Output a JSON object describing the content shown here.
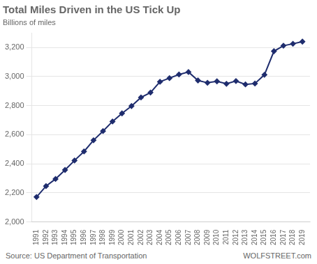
{
  "chart_data": {
    "type": "line",
    "title": "Total Miles Driven in the US Tick Up",
    "subtitle": "Billions of miles",
    "annotations": [
      "Source: US Department of Transportation",
      "WOLFSTREET.com"
    ],
    "x": [
      1991,
      1992,
      1993,
      1994,
      1995,
      1996,
      1997,
      1998,
      1999,
      2000,
      2001,
      2002,
      2003,
      2004,
      2005,
      2006,
      2007,
      2008,
      2009,
      2010,
      2011,
      2012,
      2013,
      2014,
      2015,
      2016,
      2017,
      2018,
      2019
    ],
    "values": [
      2172,
      2247,
      2296,
      2358,
      2423,
      2485,
      2562,
      2625,
      2691,
      2747,
      2797,
      2856,
      2890,
      2964,
      2989,
      3014,
      3031,
      2973,
      2957,
      2967,
      2950,
      2969,
      2946,
      2952,
      3012,
      3174,
      3212,
      3225,
      3240
    ],
    "color": "#1f2d6e",
    "marker": "diamond",
    "xlim": [
      1990.5,
      2019.8
    ],
    "xticks": [
      1991,
      1992,
      1993,
      1994,
      1995,
      1996,
      1997,
      1998,
      1999,
      2000,
      2001,
      2002,
      2003,
      2004,
      2005,
      2006,
      2007,
      2008,
      2009,
      2010,
      2011,
      2012,
      2013,
      2014,
      2015,
      2016,
      2017,
      2018,
      2019
    ],
    "ylim": [
      2000,
      3300
    ],
    "yticks": [
      {
        "value": 2000,
        "label": "2,000"
      },
      {
        "value": 2200,
        "label": "2,200"
      },
      {
        "value": 2400,
        "label": "2,400"
      },
      {
        "value": 2600,
        "label": "2,600"
      },
      {
        "value": 2800,
        "label": "2,800"
      },
      {
        "value": 3000,
        "label": "3,000"
      },
      {
        "value": 3200,
        "label": "3,200"
      }
    ],
    "grid": true
  }
}
